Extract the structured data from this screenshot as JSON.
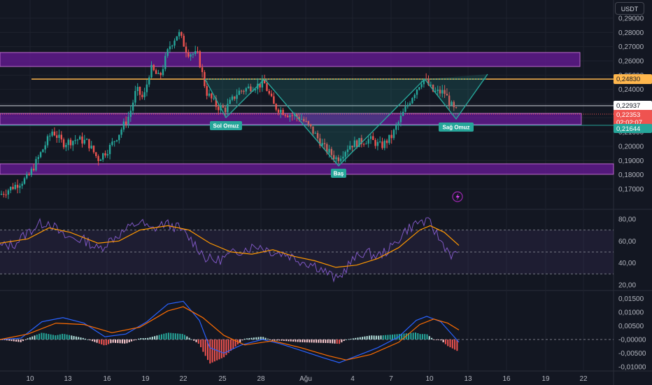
{
  "currency": "USDT",
  "colors": {
    "background": "#131722",
    "up": "#26a69a",
    "down": "#ef5350",
    "zone_fill": "#7b1fa2",
    "zone_border": "#ba68c8",
    "resistance": "#ffb74d",
    "pattern": "#26a69a",
    "rsi": "#7e57c2",
    "rsi_ma": "#ff9800",
    "macd": "#2962ff",
    "macd_signal": "#ff6d00"
  },
  "price_axis": [
    "0,29000",
    "0,28000",
    "0,27000",
    "0,26000",
    "0,25000",
    "0,24000",
    "0,23000",
    "0,22000",
    "0,21000",
    "0,20000",
    "0,19000",
    "0,18000",
    "0,17000"
  ],
  "rsi_axis": [
    "80,00",
    "60,00",
    "40,00",
    "20,00"
  ],
  "macd_axis": [
    "0,01500",
    "0,01000",
    "0,00500",
    "-0,00000",
    "-0,00500",
    "-0,01000"
  ],
  "time_axis": [
    "10",
    "13",
    "16",
    "19",
    "22",
    "25",
    "28",
    "Ağu",
    "4",
    "7",
    "10",
    "13",
    "16",
    "19",
    "22"
  ],
  "price_tags": {
    "resistance": "0,24830",
    "white_line": "0,22937",
    "current_price": "0,22353",
    "countdown": "02:02:07",
    "support_line": "0,21644"
  },
  "pattern_labels": {
    "left_shoulder": "Sol Omuz",
    "head": "Baş",
    "right_shoulder": "Sağ Omuz"
  },
  "chart_data": {
    "type": "candlestick",
    "price_range": [
      0.1625,
      0.2955
    ],
    "zones": [
      [
        0.2585,
        0.2685
      ],
      [
        0.2137,
        0.222
      ],
      [
        0.1815,
        0.189
      ]
    ],
    "resistance_level": 0.2483,
    "white_level": 0.22937,
    "current_price": 0.22353,
    "support_level": 0.21644,
    "head_and_shoulders": {
      "neckline": 0.2483,
      "left_shoulder_low": 0.2205,
      "head_low": 0.1895,
      "right_shoulder_low": 0.2205
    },
    "rsi": {
      "range": [
        15,
        85
      ],
      "upper": 70,
      "middle": 50,
      "lower": 30
    },
    "macd": {
      "range": [
        -0.0115,
        0.0165
      ]
    }
  }
}
